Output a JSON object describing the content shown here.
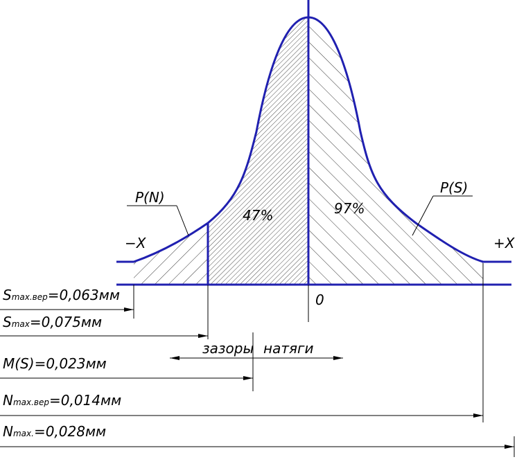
{
  "curve_labels": {
    "left": "P(N)",
    "right": "P(S)"
  },
  "area_labels": {
    "left": "47%",
    "right": "97%"
  },
  "axis_labels": {
    "minus": "−X",
    "plus": "+X",
    "origin": "0"
  },
  "dimensions": [
    {
      "symbol": "S",
      "subscript": "max.вер",
      "text": "=0,063мм"
    },
    {
      "symbol": "S",
      "subscript": "max",
      "text": "=0,075мм"
    },
    {
      "symbol": "M(S)",
      "subscript": null,
      "text": "=0,023мм"
    },
    {
      "symbol": "N",
      "subscript": "max.вер",
      "text": "=0,014мм"
    },
    {
      "symbol": "N",
      "subscript": "max.",
      "text": "=0,028мм"
    }
  ],
  "zones": {
    "left": "зазоры",
    "right": "натяги"
  }
}
